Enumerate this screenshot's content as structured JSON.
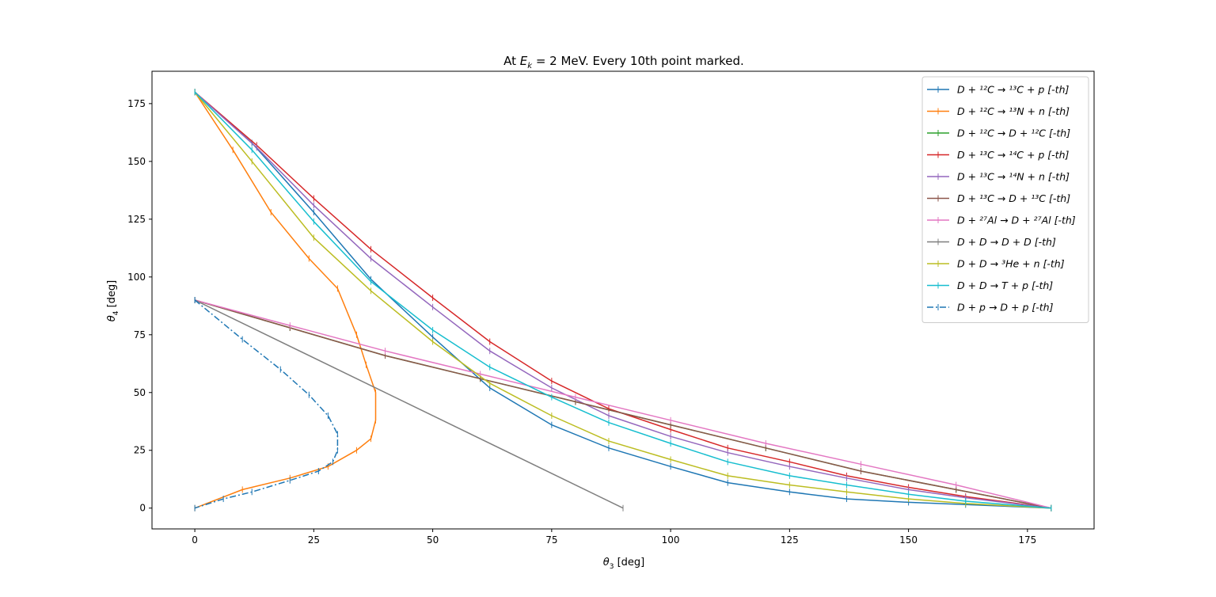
{
  "chart_data": {
    "type": "line",
    "title_prefix": "At ",
    "title_var": "E",
    "title_sub": "k",
    "title_suffix": " = 2 MeV. Every 10th point marked.",
    "xlabel_var": "θ",
    "xlabel_sub": "3",
    "xlabel_unit": " [deg]",
    "ylabel_var": "θ",
    "ylabel_sub": "4",
    "ylabel_unit": " [deg]",
    "xlim": [
      -9,
      189
    ],
    "ylim": [
      -9,
      189
    ],
    "xticks": [
      0,
      25,
      50,
      75,
      100,
      125,
      150,
      175
    ],
    "yticks": [
      0,
      25,
      50,
      75,
      100,
      125,
      150,
      175
    ],
    "legend_position": "top-right",
    "series": [
      {
        "name": "D + ¹²C → ¹³C + p [-th]",
        "color": "#1f77b4",
        "dash": "",
        "x": [
          0,
          12,
          25,
          37,
          50,
          62,
          75,
          87,
          100,
          112,
          125,
          137,
          150,
          162,
          180
        ],
        "y": [
          180,
          158,
          128,
          99,
          74,
          52,
          36,
          26,
          18,
          11,
          7,
          4,
          2.5,
          1.5,
          0
        ]
      },
      {
        "name": "D + ¹²C → ¹³N + n [-th]",
        "color": "#ff7f0e",
        "dash": "",
        "x": [
          0,
          8,
          16,
          24,
          30,
          34,
          36,
          38,
          38,
          37,
          34,
          28,
          20,
          10,
          0
        ],
        "y": [
          180,
          155,
          128,
          108,
          95,
          75,
          62,
          50,
          38,
          30,
          25,
          18,
          13,
          8,
          0
        ]
      },
      {
        "name": "D + ¹²C → D + ¹²C [-th]",
        "color": "#2ca02c",
        "dash": "",
        "x": [
          0,
          20,
          40,
          60,
          80,
          100,
          120,
          140,
          160,
          180
        ],
        "y": [
          90,
          78,
          66,
          56,
          46,
          36,
          26,
          16,
          8,
          0
        ]
      },
      {
        "name": "D + ¹³C → ¹⁴C + p [-th]",
        "color": "#d62728",
        "dash": "",
        "x": [
          0,
          13,
          25,
          37,
          50,
          62,
          75,
          87,
          100,
          112,
          125,
          137,
          150,
          162,
          180
        ],
        "y": [
          180,
          157,
          134,
          112,
          91,
          72,
          55,
          43,
          34,
          26,
          20,
          14,
          9,
          5,
          0
        ]
      },
      {
        "name": "D + ¹³C → ¹⁴N + n [-th]",
        "color": "#9467bd",
        "dash": "",
        "x": [
          0,
          13,
          25,
          37,
          50,
          62,
          75,
          87,
          100,
          112,
          125,
          137,
          150,
          162,
          180
        ],
        "y": [
          180,
          156,
          131,
          108,
          87,
          68,
          52,
          40,
          31,
          24,
          18,
          13,
          8,
          4.5,
          0
        ]
      },
      {
        "name": "D + ¹³C → D + ¹³C [-th]",
        "color": "#8c564b",
        "dash": "",
        "x": [
          0,
          20,
          40,
          60,
          80,
          100,
          120,
          140,
          160,
          180
        ],
        "y": [
          90,
          78,
          66,
          56,
          46,
          36,
          26,
          16,
          8,
          0
        ]
      },
      {
        "name": "D + ²⁷Al → D + ²⁷Al [-th]",
        "color": "#e377c2",
        "dash": "",
        "x": [
          0,
          20,
          40,
          60,
          80,
          100,
          120,
          140,
          160,
          180
        ],
        "y": [
          90,
          79,
          68,
          58,
          48,
          38,
          28,
          19,
          10,
          0
        ]
      },
      {
        "name": "D + D → D + D [-th]",
        "color": "#7f7f7f",
        "dash": "",
        "x": [
          0,
          90
        ],
        "y": [
          90,
          0
        ]
      },
      {
        "name": "D + D → ³He + n [-th]",
        "color": "#bcbd22",
        "dash": "",
        "x": [
          0,
          12,
          25,
          37,
          50,
          62,
          75,
          87,
          100,
          112,
          125,
          137,
          150,
          162,
          180
        ],
        "y": [
          180,
          150,
          117,
          94,
          72,
          54,
          40,
          29,
          21,
          14,
          10,
          7,
          4,
          2,
          0
        ]
      },
      {
        "name": "D + D → T + p [-th]",
        "color": "#17becf",
        "dash": "",
        "x": [
          0,
          12,
          25,
          37,
          50,
          62,
          75,
          87,
          100,
          112,
          125,
          137,
          150,
          162,
          180
        ],
        "y": [
          180,
          155,
          124,
          98,
          77,
          61,
          48,
          37,
          28,
          20,
          14,
          10,
          6,
          3,
          0
        ]
      },
      {
        "name": "D + p → D + p [-th]",
        "color": "#1f77b4",
        "dash": "8,3,2,3",
        "x": [
          0,
          10,
          18,
          24,
          28,
          30,
          30,
          29,
          26,
          20,
          12,
          6,
          0
        ],
        "y": [
          90,
          73,
          60,
          49,
          40,
          32,
          25,
          20,
          16,
          12,
          7,
          4,
          0
        ]
      }
    ]
  }
}
